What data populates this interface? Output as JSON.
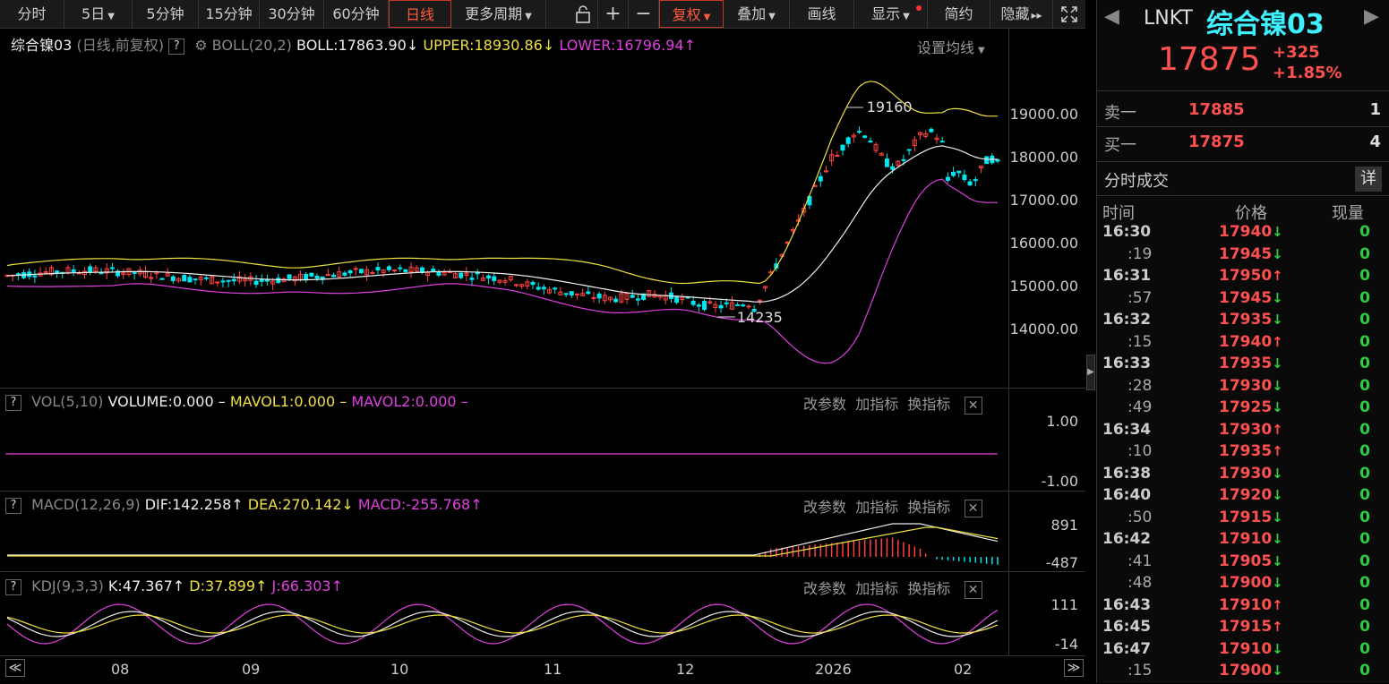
{
  "toolbar": {
    "tabs": [
      {
        "label": "分时",
        "caret": false,
        "left": 0,
        "width": 72
      },
      {
        "label": "5日",
        "caret": true,
        "left": 72,
        "width": 76
      },
      {
        "label": "5分钟",
        "caret": false,
        "left": 148,
        "width": 74
      },
      {
        "label": "15分钟",
        "caret": false,
        "left": 222,
        "width": 68
      },
      {
        "label": "30分钟",
        "caret": false,
        "left": 290,
        "width": 72
      },
      {
        "label": "60分钟",
        "caret": false,
        "left": 362,
        "width": 72
      },
      {
        "label": "日线",
        "caret": false,
        "left": 434,
        "width": 70,
        "active": true
      },
      {
        "label": "更多周期",
        "caret": true,
        "left": 504,
        "width": 106
      }
    ],
    "lock_icon": "lock-icon",
    "zoom_in_label": "+",
    "zoom_out_label": "−",
    "fuquan_label": "复权",
    "diejia_label": "叠加",
    "huaxian_label": "画线",
    "xianshi_label": "显示",
    "jianyue_label": "简约",
    "yincang_label": "隐藏",
    "fullscreen_icon": "expand-icon"
  },
  "main_chart": {
    "name": "综合镍03",
    "mode": "(日线,前复权)",
    "indicator": "BOLL(20,2)",
    "boll": "BOLL:17863.90",
    "boll_arrow": "↓",
    "upper": "UPPER:18930.86",
    "upper_arrow": "↓",
    "lower": "LOWER:16796.94",
    "lower_arrow": "↑",
    "setting_label": "设置均线",
    "y_ticks": [
      "19000.00",
      "18000.00",
      "17000.00",
      "16000.00",
      "15000.00",
      "14000.00"
    ],
    "high_annotation": "19160",
    "low_annotation": "14235"
  },
  "vol_panel": {
    "indicator": "VOL(5,10)",
    "volume": "VOLUME:0.000",
    "mavol1": "MAVOL1:0.000",
    "mavol2": "MAVOL2:0.000",
    "dash": "–",
    "y_ticks": [
      "1.00",
      "-1.00"
    ]
  },
  "macd_panel": {
    "indicator": "MACD(12,26,9)",
    "dif": "DIF:142.258",
    "dif_arrow": "↑",
    "dea": "DEA:270.142",
    "dea_arrow": "↓",
    "macd": "MACD:-255.768",
    "macd_arrow": "↑",
    "y_ticks": [
      "891",
      "-487"
    ]
  },
  "kdj_panel": {
    "indicator": "KDJ(9,3,3)",
    "k": "K:47.367",
    "k_arrow": "↑",
    "d": "D:37.899",
    "d_arrow": "↑",
    "j": "J:66.303",
    "j_arrow": "↑",
    "y_ticks": [
      "111",
      "-14"
    ]
  },
  "panel_controls": {
    "modify": "改参数",
    "add": "加指标",
    "switch": "换指标",
    "close": "✕"
  },
  "x_axis": {
    "labels": [
      "08",
      "09",
      "10",
      "11",
      "12",
      "2026",
      "02"
    ],
    "left_arrow": "≪",
    "right_arrow": "≫"
  },
  "right_panel": {
    "symbol": "LNKT",
    "name": "综合镍03",
    "price": "17875",
    "change": "+325",
    "change_pct": "+1.85%",
    "sell_label": "卖一",
    "sell_price": "17885",
    "sell_qty": "1",
    "buy_label": "买一",
    "buy_price": "17875",
    "buy_qty": "4",
    "trades_title": "分时成交",
    "detail_label": "详",
    "col_time": "时间",
    "col_price": "价格",
    "col_qty": "现量",
    "trades": [
      {
        "time": "16:30",
        "price": "17940",
        "dir": "down",
        "qty": "0",
        "main": true
      },
      {
        "time": ":19",
        "price": "17945",
        "dir": "down",
        "qty": "0",
        "main": false
      },
      {
        "time": "16:31",
        "price": "17950",
        "dir": "up",
        "qty": "0",
        "main": true
      },
      {
        "time": ":57",
        "price": "17945",
        "dir": "down",
        "qty": "0",
        "main": false
      },
      {
        "time": "16:32",
        "price": "17935",
        "dir": "down",
        "qty": "0",
        "main": true
      },
      {
        "time": ":15",
        "price": "17940",
        "dir": "up",
        "qty": "0",
        "main": false
      },
      {
        "time": "16:33",
        "price": "17935",
        "dir": "down",
        "qty": "0",
        "main": true
      },
      {
        "time": ":28",
        "price": "17930",
        "dir": "down",
        "qty": "0",
        "main": false
      },
      {
        "time": ":49",
        "price": "17925",
        "dir": "down",
        "qty": "0",
        "main": false
      },
      {
        "time": "16:34",
        "price": "17930",
        "dir": "up",
        "qty": "0",
        "main": true
      },
      {
        "time": ":10",
        "price": "17935",
        "dir": "up",
        "qty": "0",
        "main": false
      },
      {
        "time": "16:38",
        "price": "17930",
        "dir": "down",
        "qty": "0",
        "main": true
      },
      {
        "time": "16:40",
        "price": "17920",
        "dir": "down",
        "qty": "0",
        "main": true
      },
      {
        "time": ":50",
        "price": "17915",
        "dir": "down",
        "qty": "0",
        "main": false
      },
      {
        "time": "16:42",
        "price": "17910",
        "dir": "down",
        "qty": "0",
        "main": true
      },
      {
        "time": ":41",
        "price": "17905",
        "dir": "down",
        "qty": "0",
        "main": false
      },
      {
        "time": ":48",
        "price": "17900",
        "dir": "down",
        "qty": "0",
        "main": false
      },
      {
        "time": "16:43",
        "price": "17910",
        "dir": "up",
        "qty": "0",
        "main": true
      },
      {
        "time": "16:45",
        "price": "17915",
        "dir": "up",
        "qty": "0",
        "main": true
      },
      {
        "time": "16:47",
        "price": "17910",
        "dir": "down",
        "qty": "0",
        "main": true
      },
      {
        "time": ":15",
        "price": "17900",
        "dir": "down",
        "qty": "0",
        "main": false
      }
    ]
  },
  "colors": {
    "up": "#ff4040",
    "down": "#00e5ee",
    "upper": "#f0e040",
    "lower": "#e040e0",
    "mid": "#eeeeee"
  }
}
